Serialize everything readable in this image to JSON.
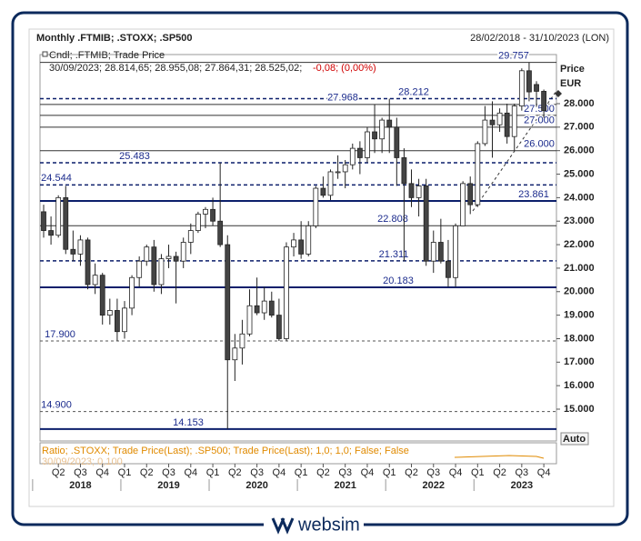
{
  "chart_data": {
    "type": "candlestick",
    "title": "Monthly .FTMIB; .STOXX; .SP500",
    "date_range": "28/02/2018 - 31/10/2023 (LON)",
    "legend_line": "Cndl; .FTMIB; Trade Price",
    "info_line": "30/09/2023; 28.814,65; 28.955,08; 27.864,31; 28.525,02;",
    "info_change": "-0,08; (0,00%)",
    "y_label": "Price",
    "currency": "EUR",
    "scale_mode": "Auto",
    "ratio_text": "Ratio; .STOXX; Trade Price(Last); .SP500; Trade Price(Last);  1,0; 1,0; False; False",
    "ratio_sub": "30/09/2023; 0,100",
    "up_color": "#ffffff",
    "down_color": "#444444",
    "ylim": [
      13.646,
      30.089
    ],
    "yticks": [
      {
        "value": 15,
        "label": "15.000"
      },
      {
        "value": 16,
        "label": "16.000"
      },
      {
        "value": 17,
        "label": "17.000"
      },
      {
        "value": 18,
        "label": "18.000"
      },
      {
        "value": 19,
        "label": "19.000"
      },
      {
        "value": 20,
        "label": "20.000"
      },
      {
        "value": 21,
        "label": "21.000"
      },
      {
        "value": 22,
        "label": "22.000"
      },
      {
        "value": 23,
        "label": "23.000"
      },
      {
        "value": 24,
        "label": "24.000"
      },
      {
        "value": 25,
        "label": "25.000"
      },
      {
        "value": 26,
        "label": "26.000"
      },
      {
        "value": 27,
        "label": "27.000"
      },
      {
        "value": 28,
        "label": "28.000"
      }
    ],
    "quarters": [
      "Q2",
      "Q3",
      "Q4",
      "Q1",
      "Q2",
      "Q3",
      "Q4",
      "Q1",
      "Q2",
      "Q3",
      "Q4",
      "Q1",
      "Q2",
      "Q3",
      "Q4",
      "Q1",
      "Q2",
      "Q3",
      "Q4",
      "Q1",
      "Q2",
      "Q3",
      "Q4"
    ],
    "years": [
      "2018",
      "2019",
      "2020",
      "2021",
      "2022",
      "2023"
    ],
    "open": [
      23.4,
      22.6,
      22.4,
      24.0,
      21.8,
      21.6,
      22.2,
      20.3,
      20.7,
      19.0,
      19.2,
      18.3,
      19.3,
      20.6,
      21.3,
      21.9,
      20.3,
      21.4,
      21.5,
      21.3,
      22.1,
      22.6,
      23.3,
      23.5,
      23.0,
      22.0,
      17.1,
      17.6,
      18.2,
      19.4,
      19.1,
      19.6,
      19.0,
      18.0,
      21.9,
      22.2,
      21.6,
      22.8,
      24.4,
      24.1,
      25.1,
      25.1,
      25.4,
      26.1,
      25.7,
      26.8,
      26.5,
      27.3,
      27.0,
      25.7,
      24.6,
      24.0,
      24.5,
      21.3,
      22.1,
      21.3,
      20.6,
      22.8,
      24.6,
      23.7,
      26.3,
      27.3,
      27.1,
      27.6,
      26.6,
      27.9,
      29.4,
      28.815,
      28.525
    ],
    "high": [
      23.7,
      23.2,
      24.1,
      24.5,
      22.6,
      22.4,
      22.3,
      21.2,
      20.8,
      19.7,
      19.7,
      19.6,
      20.7,
      21.5,
      22.0,
      22.2,
      21.6,
      22.0,
      21.7,
      22.3,
      22.9,
      23.4,
      23.6,
      24.0,
      25.483,
      22.4,
      18.2,
      18.8,
      20.1,
      20.6,
      20.2,
      20.0,
      19.7,
      22.1,
      22.5,
      23.0,
      23.0,
      24.5,
      24.9,
      25.2,
      25.8,
      25.6,
      26.3,
      26.4,
      27.0,
      27.968,
      27.4,
      28.212,
      27.4,
      26.1,
      25.2,
      24.8,
      24.8,
      22.6,
      23.1,
      22.2,
      22.9,
      24.7,
      24.9,
      26.4,
      27.9,
      28.1,
      27.8,
      28.0,
      28.0,
      29.5,
      29.757,
      28.955,
      28.6
    ],
    "low": [
      22.3,
      22.0,
      22.3,
      21.6,
      21.3,
      21.1,
      20.1,
      19.9,
      18.6,
      18.6,
      17.9,
      18.0,
      19.0,
      20.2,
      21.1,
      20.0,
      19.9,
      21.0,
      19.5,
      21.0,
      21.6,
      22.5,
      22.7,
      22.8,
      21.9,
      14.153,
      16.2,
      16.9,
      18.1,
      19.0,
      18.8,
      18.9,
      17.9,
      17.9,
      21.5,
      21.4,
      21.5,
      22.7,
      24.0,
      23.9,
      24.8,
      24.4,
      25.2,
      25.0,
      25.5,
      25.9,
      25.9,
      25.9,
      24.5,
      21.3,
      23.6,
      23.2,
      21.1,
      20.8,
      21.2,
      20.2,
      20.2,
      22.8,
      23.3,
      23.6,
      26.2,
      25.7,
      26.8,
      26.3,
      26.0,
      27.7,
      28.1,
      27.864,
      27.4
    ],
    "close": [
      22.6,
      22.4,
      24.0,
      21.8,
      21.6,
      22.2,
      20.3,
      20.7,
      19.0,
      19.2,
      18.3,
      19.3,
      20.6,
      21.3,
      21.9,
      20.3,
      21.4,
      21.5,
      21.3,
      22.1,
      22.6,
      23.3,
      23.5,
      23.0,
      22.0,
      17.1,
      17.6,
      18.2,
      19.4,
      19.1,
      19.6,
      19.0,
      18.0,
      21.9,
      22.2,
      21.6,
      22.8,
      24.4,
      24.1,
      25.1,
      25.1,
      25.4,
      26.1,
      25.7,
      26.8,
      26.5,
      27.3,
      27.0,
      25.7,
      24.6,
      24.0,
      24.5,
      21.3,
      22.1,
      21.3,
      20.6,
      22.8,
      24.6,
      23.7,
      26.3,
      27.3,
      27.1,
      27.6,
      26.6,
      27.9,
      29.4,
      28.5,
      28.525,
      27.7
    ],
    "levels": [
      {
        "value": 29.757,
        "style": "solid"
      },
      {
        "value": 28.212,
        "style": "dashed"
      },
      {
        "value": 27.968,
        "style": "solid"
      },
      {
        "value": 27.5,
        "label": "27.500",
        "style": "solid"
      },
      {
        "value": 27,
        "label": "27.000",
        "style": "solid"
      },
      {
        "value": 26,
        "label": "26.000",
        "style": "solid"
      },
      {
        "value": 25.483,
        "style": "dashed"
      },
      {
        "value": 24.544,
        "style": "dashed"
      },
      {
        "value": 23.861,
        "style": "bold"
      },
      {
        "value": 22.808,
        "style": "solid"
      },
      {
        "value": 21.311,
        "style": "dashed"
      },
      {
        "value": 20.183,
        "style": "bold"
      },
      {
        "value": 17.9,
        "label": "17.900",
        "style": "dotted"
      },
      {
        "value": 14.9,
        "label": "14.900",
        "style": "dotted"
      },
      {
        "value": 14.153,
        "style": "bold"
      }
    ]
  },
  "footer": {
    "brand": "websim"
  }
}
